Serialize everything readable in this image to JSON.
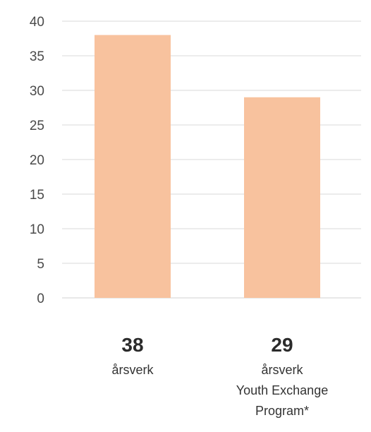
{
  "chart_data": {
    "type": "bar",
    "categories": [
      "årsverk",
      "årsverk Youth Exchange Program*"
    ],
    "values": [
      38,
      29
    ],
    "value_labels": [
      "38",
      "29"
    ],
    "category_label_lines": [
      [
        "årsverk"
      ],
      [
        "årsverk",
        "Youth Exchange",
        "Program*"
      ]
    ],
    "y_ticks": [
      "0",
      "5",
      "10",
      "15",
      "20",
      "25",
      "30",
      "35",
      "40"
    ],
    "ylim": [
      0,
      40
    ],
    "grid": true,
    "legend": "none",
    "bar_color": "#f8c29e",
    "grid_color": "#d9d9d9"
  }
}
